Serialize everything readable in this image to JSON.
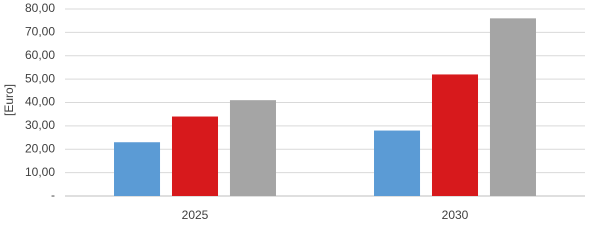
{
  "chart_data": {
    "type": "bar",
    "y_label": "[Euro]",
    "categories": [
      "2025",
      "2030"
    ],
    "series": [
      {
        "color": "#5b9bd5",
        "values": [
          23,
          28
        ]
      },
      {
        "color": "#d7191c",
        "values": [
          34,
          52
        ]
      },
      {
        "color": "#a5a5a5",
        "values": [
          41,
          76
        ]
      }
    ],
    "ylim": [
      0,
      80
    ],
    "yticks": [
      {
        "value": 0,
        "label": "-"
      },
      {
        "value": 10,
        "label": "10,00"
      },
      {
        "value": 20,
        "label": "20,00"
      },
      {
        "value": 30,
        "label": "30,00"
      },
      {
        "value": 40,
        "label": "40,00"
      },
      {
        "value": 50,
        "label": "50,00"
      },
      {
        "value": 60,
        "label": "60,00"
      },
      {
        "value": 70,
        "label": "70,00"
      },
      {
        "value": 80,
        "label": "80,00"
      }
    ],
    "grid": true
  }
}
